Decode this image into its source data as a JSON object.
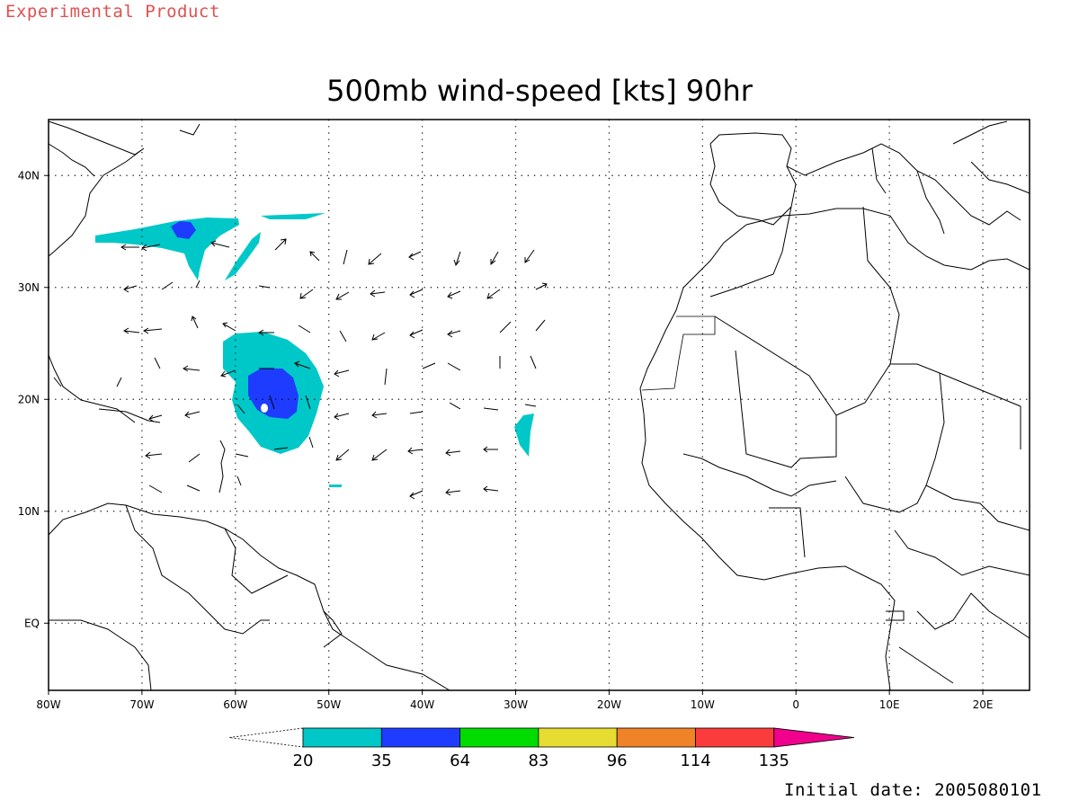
{
  "header": {
    "watermark": "Experimental Product",
    "title": "500mb wind-speed [kts] 90hr"
  },
  "footer": {
    "initial_date": "Initial date: 2005080101"
  },
  "map": {
    "lon_range": [
      -80,
      25
    ],
    "lat_range": [
      -6,
      45
    ],
    "lon_ticks": [
      {
        "value": -80,
        "label": "80W"
      },
      {
        "value": -70,
        "label": "70W"
      },
      {
        "value": -60,
        "label": "60W"
      },
      {
        "value": -50,
        "label": "50W"
      },
      {
        "value": -40,
        "label": "40W"
      },
      {
        "value": -30,
        "label": "30W"
      },
      {
        "value": -20,
        "label": "20W"
      },
      {
        "value": -10,
        "label": "10W"
      },
      {
        "value": 0,
        "label": "0"
      },
      {
        "value": 10,
        "label": "10E"
      },
      {
        "value": 20,
        "label": "20E"
      }
    ],
    "lat_ticks": [
      {
        "value": 40,
        "label": "40N"
      },
      {
        "value": 30,
        "label": "30N"
      },
      {
        "value": 20,
        "label": "20N"
      },
      {
        "value": 10,
        "label": "10N"
      },
      {
        "value": 0,
        "label": "EQ"
      }
    ],
    "grid": "dotted"
  },
  "colorbar": {
    "colors": [
      "#00c8c8",
      "#1e3cff",
      "#00dc00",
      "#e6dc32",
      "#f08228",
      "#fa3c3c",
      "#f0008c"
    ],
    "labels": [
      "20",
      "35",
      "64",
      "83",
      "96",
      "114",
      "135"
    ]
  }
}
